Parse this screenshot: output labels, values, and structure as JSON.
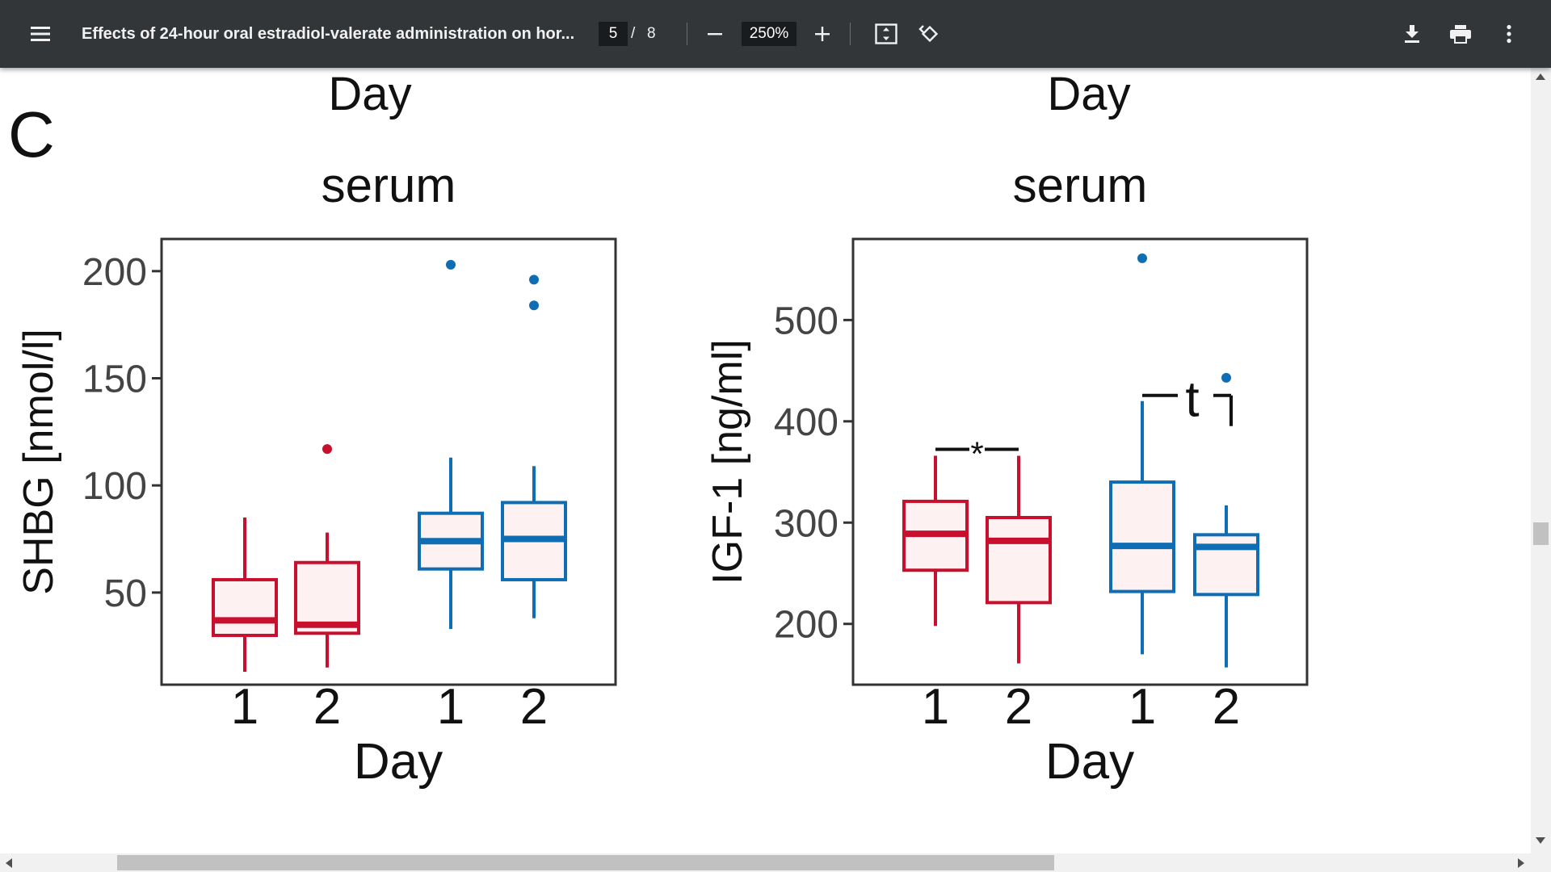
{
  "toolbar": {
    "title": "Effects of 24-hour oral estradiol-valerate administration on hor...",
    "current_page": "5",
    "page_separator": "/",
    "total_pages": "8",
    "zoom": "250%",
    "icons": [
      "menu-icon",
      "zoom-out-icon",
      "zoom-in-icon",
      "fit-page-icon",
      "rotate-icon",
      "download-icon",
      "print-icon",
      "more-options-icon"
    ]
  },
  "figure": {
    "panel_label": "C",
    "top_day_left": "Day",
    "top_day_right": "Day",
    "colors": {
      "group1": "#c8102e",
      "group2": "#0f6db3",
      "box_fill": "#fdf1f1",
      "frame": "#333333"
    }
  },
  "chart_data": [
    {
      "type": "box",
      "title": "serum",
      "xlabel": "Day",
      "ylabel": "SHBG [nmol/l]",
      "ylim": [
        7,
        215
      ],
      "yticks": [
        50,
        100,
        150,
        200
      ],
      "categories": [
        "1",
        "2",
        "1",
        "2"
      ],
      "boxes": [
        {
          "color": "#c8102e",
          "whisker_low": 13,
          "q1": 30,
          "median": 37,
          "q3": 56,
          "whisker_high": 85,
          "outliers": []
        },
        {
          "color": "#c8102e",
          "whisker_low": 15,
          "q1": 31,
          "median": 35,
          "q3": 64,
          "whisker_high": 78,
          "outliers": [
            117
          ]
        },
        {
          "color": "#0f6db3",
          "whisker_low": 33,
          "q1": 61,
          "median": 74,
          "q3": 87,
          "whisker_high": 113,
          "outliers": [
            203
          ]
        },
        {
          "color": "#0f6db3",
          "whisker_low": 38,
          "q1": 56,
          "median": 75,
          "q3": 92,
          "whisker_high": 109,
          "outliers": [
            196,
            184
          ]
        }
      ]
    },
    {
      "type": "box",
      "title": "serum",
      "xlabel": "Day",
      "ylabel": "IGF-1 [ng/ml]",
      "ylim": [
        140,
        580
      ],
      "yticks": [
        200,
        300,
        400,
        500
      ],
      "categories": [
        "1",
        "2",
        "1",
        "2"
      ],
      "annotations": [
        "*",
        "t"
      ],
      "boxes": [
        {
          "color": "#c8102e",
          "whisker_low": 198,
          "q1": 253,
          "median": 289,
          "q3": 321,
          "whisker_high": 366,
          "outliers": []
        },
        {
          "color": "#c8102e",
          "whisker_low": 161,
          "q1": 221,
          "median": 282,
          "q3": 305,
          "whisker_high": 366,
          "outliers": []
        },
        {
          "color": "#0f6db3",
          "whisker_low": 170,
          "q1": 232,
          "median": 277,
          "q3": 340,
          "whisker_high": 420,
          "outliers": [
            561
          ]
        },
        {
          "color": "#0f6db3",
          "whisker_low": 157,
          "q1": 229,
          "median": 276,
          "q3": 288,
          "whisker_high": 317,
          "outliers": [
            443
          ]
        }
      ]
    }
  ]
}
